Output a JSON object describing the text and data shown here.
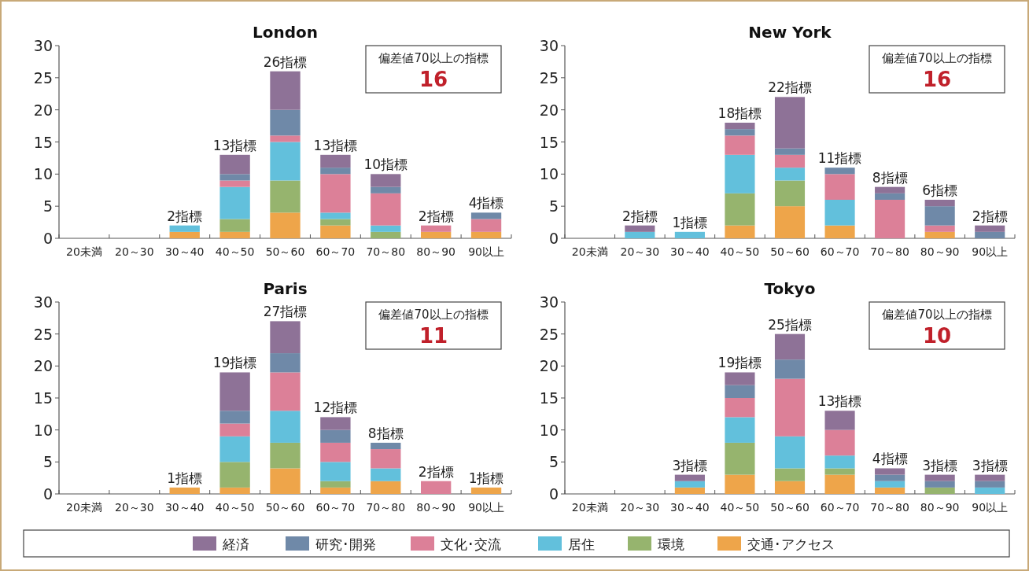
{
  "chart_data": [
    {
      "type": "bar",
      "title": "London",
      "stacked": true,
      "legend": "bottom",
      "categories": [
        "20未満",
        "20～30",
        "30～40",
        "40～50",
        "50～60",
        "60～70",
        "70～80",
        "80～90",
        "90以上"
      ],
      "ylim": [
        0,
        30
      ],
      "yticks": [
        0,
        5,
        10,
        15,
        20,
        25,
        30
      ],
      "annotations": [
        "偏差値70以上の指標",
        "16"
      ],
      "totals": [
        null,
        null,
        "2指標",
        "13指標",
        "26指標",
        "13指標",
        "10指標",
        "2指標",
        "4指標"
      ],
      "series": [
        {
          "name": "交通･アクセス",
          "color": "#eea54a",
          "values": [
            0,
            0,
            1,
            1,
            4,
            2,
            0,
            1,
            1
          ]
        },
        {
          "name": "環境",
          "color": "#96b46e",
          "values": [
            0,
            0,
            0,
            2,
            5,
            1,
            1,
            0,
            0
          ]
        },
        {
          "name": "居住",
          "color": "#62c0dc",
          "values": [
            0,
            0,
            1,
            5,
            6,
            1,
            1,
            0,
            0
          ]
        },
        {
          "name": "文化･交流",
          "color": "#dc8098",
          "values": [
            0,
            0,
            0,
            1,
            1,
            6,
            5,
            1,
            2
          ]
        },
        {
          "name": "研究･開発",
          "color": "#6f89a8",
          "values": [
            0,
            0,
            0,
            1,
            4,
            1,
            1,
            0,
            1
          ]
        },
        {
          "name": "経済",
          "color": "#8e7297",
          "values": [
            0,
            0,
            0,
            3,
            6,
            2,
            2,
            0,
            0
          ]
        }
      ]
    },
    {
      "type": "bar",
      "title": "New York",
      "stacked": true,
      "categories": [
        "20未満",
        "20～30",
        "30～40",
        "40～50",
        "50～60",
        "60～70",
        "70～80",
        "80～90",
        "90以上"
      ],
      "ylim": [
        0,
        30
      ],
      "yticks": [
        0,
        5,
        10,
        15,
        20,
        25,
        30
      ],
      "annotations": [
        "偏差値70以上の指標",
        "16"
      ],
      "totals": [
        null,
        "2指標",
        "1指標",
        "18指標",
        "22指標",
        "11指標",
        "8指標",
        "6指標",
        "2指標"
      ],
      "series": [
        {
          "color": "#eea54a",
          "values": [
            0,
            0,
            0,
            2,
            5,
            2,
            0,
            1,
            0
          ]
        },
        {
          "color": "#96b46e",
          "values": [
            0,
            0,
            0,
            5,
            4,
            0,
            0,
            0,
            0
          ]
        },
        {
          "color": "#62c0dc",
          "values": [
            0,
            1,
            1,
            6,
            2,
            4,
            0,
            0,
            0
          ]
        },
        {
          "color": "#dc8098",
          "values": [
            0,
            0,
            0,
            3,
            2,
            4,
            6,
            1,
            0
          ]
        },
        {
          "color": "#6f89a8",
          "values": [
            0,
            0,
            0,
            1,
            1,
            1,
            1,
            3,
            1
          ]
        },
        {
          "color": "#8e7297",
          "values": [
            0,
            1,
            0,
            1,
            8,
            0,
            1,
            1,
            1
          ]
        }
      ]
    },
    {
      "type": "bar",
      "title": "Paris",
      "stacked": true,
      "categories": [
        "20未満",
        "20～30",
        "30～40",
        "40～50",
        "50～60",
        "60～70",
        "70～80",
        "80～90",
        "90以上"
      ],
      "ylim": [
        0,
        30
      ],
      "yticks": [
        0,
        5,
        10,
        15,
        20,
        25,
        30
      ],
      "annotations": [
        "偏差値70以上の指標",
        "11"
      ],
      "totals": [
        null,
        null,
        "1指標",
        "19指標",
        "27指標",
        "12指標",
        "8指標",
        "2指標",
        "1指標"
      ],
      "series": [
        {
          "color": "#eea54a",
          "values": [
            0,
            0,
            1,
            1,
            4,
            1,
            2,
            0,
            1
          ]
        },
        {
          "color": "#96b46e",
          "values": [
            0,
            0,
            0,
            4,
            4,
            1,
            0,
            0,
            0
          ]
        },
        {
          "color": "#62c0dc",
          "values": [
            0,
            0,
            0,
            4,
            5,
            3,
            2,
            0,
            0
          ]
        },
        {
          "color": "#dc8098",
          "values": [
            0,
            0,
            0,
            2,
            6,
            3,
            3,
            2,
            0
          ]
        },
        {
          "color": "#6f89a8",
          "values": [
            0,
            0,
            0,
            2,
            3,
            2,
            1,
            0,
            0
          ]
        },
        {
          "color": "#8e7297",
          "values": [
            0,
            0,
            0,
            6,
            5,
            2,
            0,
            0,
            0
          ]
        }
      ]
    },
    {
      "type": "bar",
      "title": "Tokyo",
      "stacked": true,
      "categories": [
        "20未満",
        "20～30",
        "30～40",
        "40～50",
        "50～60",
        "60～70",
        "70～80",
        "80～90",
        "90以上"
      ],
      "ylim": [
        0,
        30
      ],
      "yticks": [
        0,
        5,
        10,
        15,
        20,
        25,
        30
      ],
      "annotations": [
        "偏差値70以上の指標",
        "10"
      ],
      "totals": [
        null,
        null,
        "3指標",
        "19指標",
        "25指標",
        "13指標",
        "4指標",
        "3指標",
        "3指標"
      ],
      "series": [
        {
          "color": "#eea54a",
          "values": [
            0,
            0,
            1,
            3,
            2,
            3,
            1,
            0,
            0
          ]
        },
        {
          "color": "#96b46e",
          "values": [
            0,
            0,
            0,
            5,
            2,
            1,
            0,
            1,
            0
          ]
        },
        {
          "color": "#62c0dc",
          "values": [
            0,
            0,
            1,
            4,
            5,
            2,
            1,
            0,
            1
          ]
        },
        {
          "color": "#dc8098",
          "values": [
            0,
            0,
            0,
            3,
            9,
            4,
            0,
            0,
            0
          ]
        },
        {
          "color": "#6f89a8",
          "values": [
            0,
            0,
            0,
            2,
            3,
            0,
            1,
            1,
            1
          ]
        },
        {
          "color": "#8e7297",
          "values": [
            0,
            0,
            1,
            2,
            4,
            3,
            1,
            1,
            1
          ]
        }
      ]
    }
  ]
}
